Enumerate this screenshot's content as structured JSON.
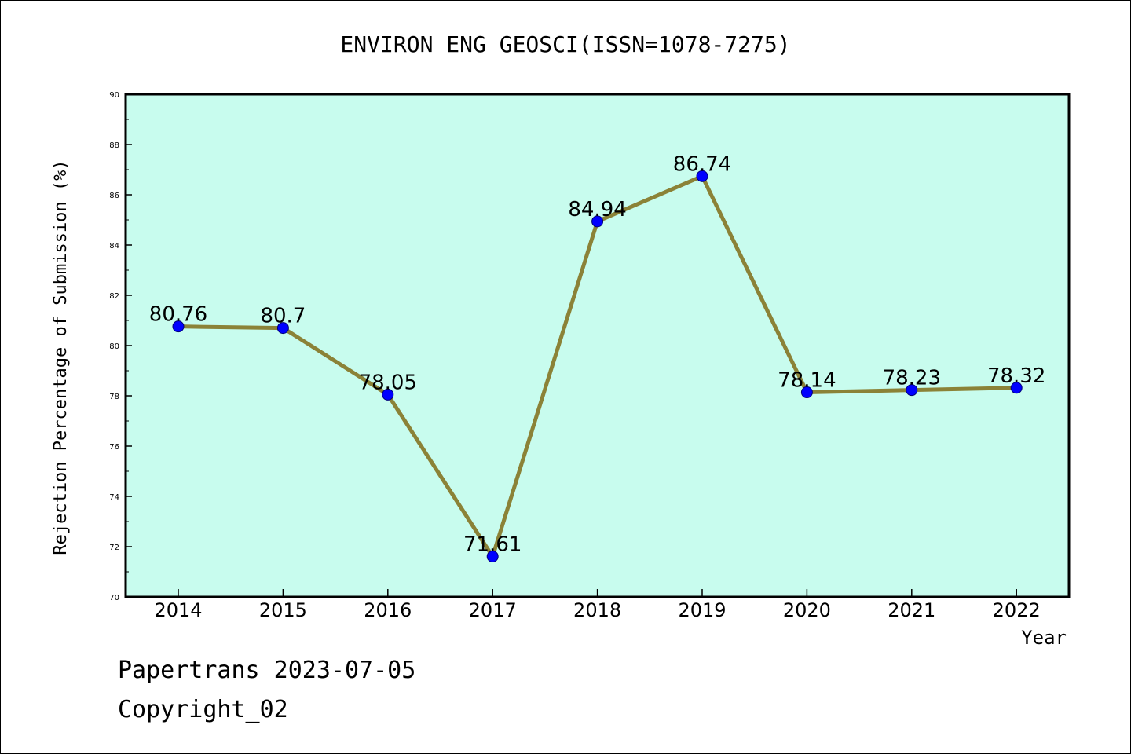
{
  "chart_data": {
    "type": "line",
    "title": "ENVIRON ENG GEOSCI(ISSN=1078-7275)",
    "xlabel": "Year",
    "ylabel": "Rejection Percentage of Submission (%)",
    "categories": [
      "2014",
      "2015",
      "2016",
      "2017",
      "2018",
      "2019",
      "2020",
      "2021",
      "2022"
    ],
    "values": [
      80.76,
      80.7,
      78.05,
      71.61,
      84.94,
      86.74,
      78.14,
      78.23,
      78.32
    ],
    "data_labels": [
      "80.76",
      "80.7",
      "78.05",
      "71.61",
      "84.94",
      "86.74",
      "78.14",
      "78.23",
      "78.32"
    ],
    "ylim": [
      70,
      90
    ],
    "yticks": [
      "70",
      "72",
      "74",
      "76",
      "78",
      "80",
      "82",
      "84",
      "86",
      "88",
      "90"
    ],
    "grid": false,
    "legend": false,
    "colors": {
      "plot_background": "#c8fcee",
      "line": "#8b8237",
      "marker": "#0000ff",
      "axes": "#000000"
    }
  },
  "footer": {
    "line1": "Papertrans 2023-07-05",
    "line2": "Copyright_02"
  }
}
